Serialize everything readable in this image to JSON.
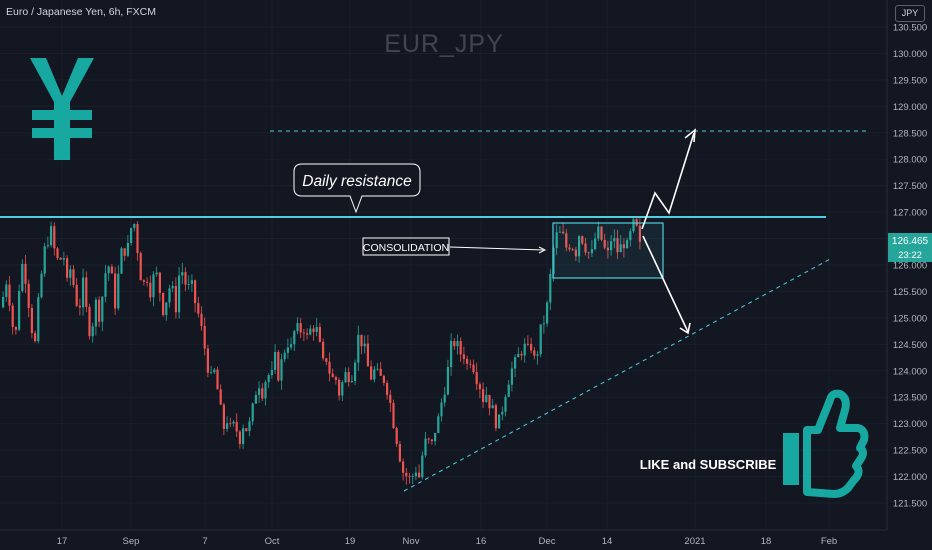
{
  "header": {
    "symbol_desc": "Euro / Japanese Yen, 6h, FXCM",
    "watermark": "EUR_JPY",
    "currency": "JPY"
  },
  "chart_data": {
    "type": "candlestick",
    "title": "EUR_JPY",
    "ylim": [
      121.2,
      130.8
    ],
    "price_axis": {
      "ticks": [
        "130.500",
        "130.000",
        "129.500",
        "129.000",
        "128.500",
        "128.000",
        "127.500",
        "127.000",
        "126.500",
        "126.000",
        "125.500",
        "125.000",
        "124.500",
        "124.000",
        "123.500",
        "123.000",
        "122.500",
        "122.000",
        "121.500"
      ],
      "last_price": "126.465",
      "countdown": "23:22",
      "last_price_color": "#26a69a"
    },
    "time_axis": {
      "ticks": [
        "17",
        "Sep",
        "7",
        "Oct",
        "19",
        "Nov",
        "16",
        "Dec",
        "14",
        "2021",
        "18",
        "Feb"
      ]
    },
    "series_close_path": [
      [
        0,
        125.2
      ],
      [
        6,
        125.8
      ],
      [
        10,
        125.1
      ],
      [
        14,
        124.5
      ],
      [
        18,
        125.6
      ],
      [
        22,
        126.1
      ],
      [
        26,
        125.6
      ],
      [
        30,
        124.9
      ],
      [
        34,
        124.5
      ],
      [
        38,
        125.4
      ],
      [
        42,
        126.1
      ],
      [
        46,
        126.5
      ],
      [
        50,
        126.6
      ],
      [
        54,
        126.2
      ],
      [
        58,
        126.0
      ],
      [
        62,
        126.3
      ],
      [
        66,
        125.6
      ],
      [
        70,
        126.0
      ],
      [
        74,
        125.4
      ],
      [
        78,
        125.2
      ],
      [
        82,
        125.6
      ],
      [
        86,
        125.0
      ],
      [
        90,
        124.7
      ],
      [
        94,
        125.3
      ],
      [
        98,
        125.1
      ],
      [
        102,
        125.5
      ],
      [
        106,
        126.1
      ],
      [
        110,
        125.8
      ],
      [
        114,
        125.3
      ],
      [
        118,
        125.9
      ],
      [
        122,
        126.4
      ],
      [
        126,
        126.2
      ],
      [
        130,
        126.7
      ],
      [
        134,
        126.8
      ],
      [
        138,
        126.0
      ],
      [
        142,
        125.6
      ],
      [
        146,
        125.8
      ],
      [
        150,
        125.5
      ],
      [
        154,
        125.9
      ],
      [
        158,
        125.6
      ],
      [
        162,
        125.2
      ],
      [
        166,
        125.4
      ],
      [
        170,
        125.7
      ],
      [
        174,
        125.1
      ],
      [
        178,
        125.8
      ],
      [
        182,
        125.9
      ],
      [
        186,
        125.5
      ],
      [
        190,
        125.6
      ],
      [
        194,
        125.3
      ],
      [
        198,
        125.0
      ],
      [
        202,
        124.6
      ],
      [
        206,
        124.2
      ],
      [
        210,
        123.8
      ],
      [
        214,
        124.0
      ],
      [
        218,
        123.4
      ],
      [
        222,
        122.9
      ],
      [
        226,
        123.1
      ],
      [
        230,
        122.8
      ],
      [
        234,
        123.0
      ],
      [
        238,
        122.7
      ],
      [
        242,
        123.0
      ],
      [
        246,
        122.9
      ],
      [
        250,
        123.0
      ],
      [
        254,
        123.6
      ],
      [
        258,
        123.8
      ],
      [
        262,
        123.6
      ],
      [
        266,
        124.0
      ],
      [
        270,
        123.8
      ],
      [
        274,
        124.2
      ],
      [
        278,
        123.9
      ],
      [
        282,
        124.3
      ],
      [
        286,
        124.6
      ],
      [
        290,
        124.4
      ],
      [
        294,
        124.8
      ],
      [
        298,
        124.7
      ],
      [
        302,
        124.9
      ],
      [
        306,
        124.6
      ],
      [
        310,
        124.8
      ],
      [
        314,
        124.9
      ],
      [
        318,
        124.5
      ],
      [
        322,
        124.1
      ],
      [
        326,
        124.3
      ],
      [
        330,
        123.8
      ],
      [
        334,
        123.9
      ],
      [
        338,
        123.6
      ],
      [
        342,
        123.8
      ],
      [
        346,
        124.0
      ],
      [
        350,
        123.9
      ],
      [
        354,
        124.3
      ],
      [
        358,
        124.7
      ],
      [
        362,
        124.5
      ],
      [
        366,
        124.1
      ],
      [
        370,
        123.9
      ],
      [
        374,
        124.0
      ],
      [
        378,
        123.8
      ],
      [
        382,
        123.9
      ],
      [
        386,
        123.7
      ],
      [
        390,
        123.3
      ],
      [
        394,
        122.9
      ],
      [
        398,
        122.5
      ],
      [
        402,
        122.1
      ],
      [
        406,
        122.0
      ],
      [
        410,
        121.9
      ],
      [
        414,
        122.2
      ],
      [
        418,
        122.0
      ],
      [
        422,
        122.5
      ],
      [
        426,
        122.7
      ],
      [
        430,
        122.5
      ],
      [
        434,
        122.9
      ],
      [
        438,
        123.1
      ],
      [
        442,
        123.6
      ],
      [
        446,
        123.9
      ],
      [
        450,
        124.4
      ],
      [
        454,
        124.6
      ],
      [
        458,
        124.3
      ],
      [
        462,
        124.4
      ],
      [
        466,
        124.1
      ],
      [
        470,
        124.3
      ],
      [
        474,
        124.0
      ],
      [
        478,
        123.8
      ],
      [
        482,
        123.5
      ],
      [
        486,
        123.6
      ],
      [
        490,
        123.3
      ],
      [
        494,
        123.1
      ],
      [
        498,
        123.0
      ],
      [
        502,
        123.4
      ],
      [
        506,
        123.8
      ],
      [
        510,
        124.0
      ],
      [
        514,
        124.1
      ],
      [
        518,
        124.3
      ],
      [
        522,
        124.5
      ],
      [
        526,
        124.3
      ],
      [
        530,
        124.5
      ],
      [
        534,
        124.1
      ],
      [
        538,
        124.6
      ],
      [
        542,
        124.9
      ],
      [
        546,
        125.2
      ],
      [
        550,
        125.9
      ],
      [
        553,
        126.4
      ],
      [
        557,
        126.6
      ],
      [
        562,
        126.5
      ],
      [
        566,
        126.3
      ],
      [
        570,
        126.5
      ],
      [
        574,
        126.2
      ],
      [
        578,
        126.6
      ],
      [
        582,
        126.5
      ],
      [
        586,
        126.3
      ],
      [
        590,
        126.1
      ],
      [
        594,
        126.5
      ],
      [
        598,
        126.6
      ],
      [
        602,
        126.4
      ],
      [
        606,
        126.1
      ],
      [
        610,
        126.5
      ],
      [
        614,
        126.4
      ],
      [
        618,
        126.2
      ],
      [
        622,
        126.5
      ],
      [
        626,
        126.3
      ],
      [
        630,
        126.6
      ],
      [
        634,
        126.8
      ],
      [
        637,
        126.5
      ],
      [
        640,
        126.2
      ],
      [
        642,
        126.465
      ]
    ],
    "annotations": {
      "resistance_label": "Daily resistance",
      "consolidation_label": "CONSOLIDATION",
      "cta_label": "LIKE and SUBSCRIBE",
      "resistance_level": 126.9,
      "target_level": 128.55
    }
  },
  "colors": {
    "background": "#131722",
    "up": "#26a69a",
    "down": "#ef5350",
    "resistance": "#4dd0e1",
    "grid": "#1c2030"
  },
  "icons": {
    "yen": "yen-icon",
    "thumbs_up": "thumbs-up-icon"
  }
}
